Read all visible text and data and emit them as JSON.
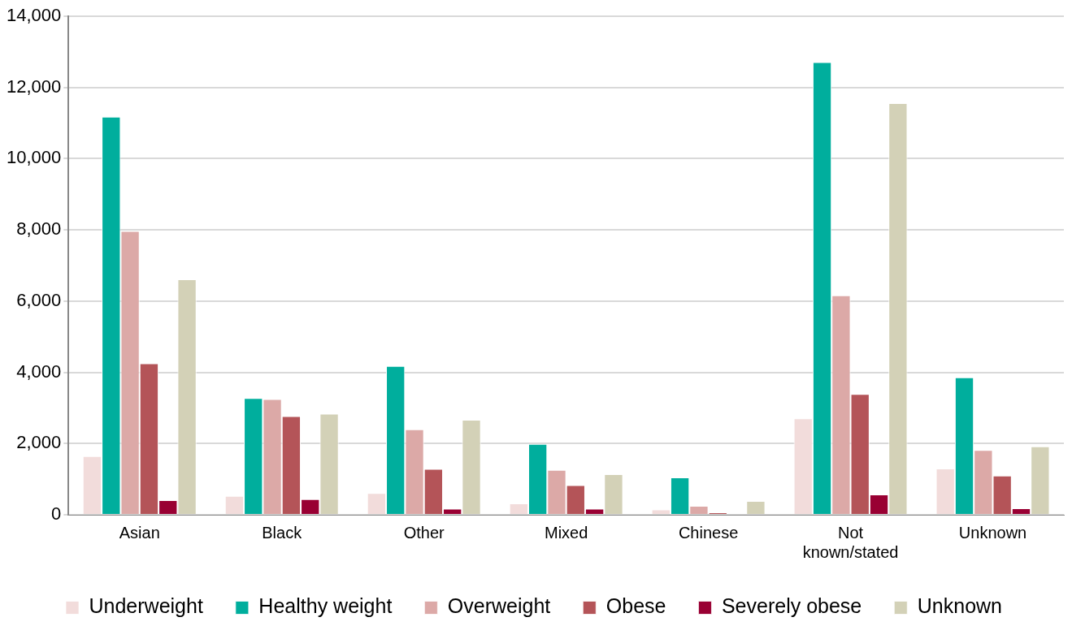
{
  "chart_data": {
    "type": "bar",
    "categories": [
      "Asian",
      "Black",
      "Other",
      "Mixed",
      "Chinese",
      "Not known/stated",
      "Unknown"
    ],
    "series": [
      {
        "name": "Underweight",
        "color": "#f2dcdb",
        "values": [
          1650,
          530,
          610,
          320,
          150,
          2710,
          1300
        ]
      },
      {
        "name": "Healthy weight",
        "color": "#00ae9d",
        "values": [
          11180,
          3280,
          4180,
          1990,
          1050,
          12710,
          3860
        ]
      },
      {
        "name": "Overweight",
        "color": "#dca9a7",
        "values": [
          7970,
          3250,
          2400,
          1260,
          250,
          6160,
          1820
        ]
      },
      {
        "name": "Obese",
        "color": "#b45458",
        "values": [
          4250,
          2770,
          1290,
          830,
          70,
          3390,
          1100
        ]
      },
      {
        "name": "Severely obese",
        "color": "#990033",
        "values": [
          410,
          440,
          170,
          170,
          0,
          570,
          180
        ]
      },
      {
        "name": "Unknown",
        "color": "#d3d1b7",
        "values": [
          6610,
          2840,
          2670,
          1140,
          390,
          11560,
          1920
        ]
      }
    ],
    "ylim": [
      0,
      14000
    ],
    "yticks": [
      {
        "value": 0,
        "label": "0"
      },
      {
        "value": 2000,
        "label": "2,000"
      },
      {
        "value": 4000,
        "label": "4,000"
      },
      {
        "value": 6000,
        "label": "6,000"
      },
      {
        "value": 8000,
        "label": "8,000"
      },
      {
        "value": 10000,
        "label": "10,000"
      },
      {
        "value": 12000,
        "label": "12,000"
      },
      {
        "value": 14000,
        "label": "14,000"
      }
    ],
    "grid": "y",
    "legend": "bottom"
  }
}
